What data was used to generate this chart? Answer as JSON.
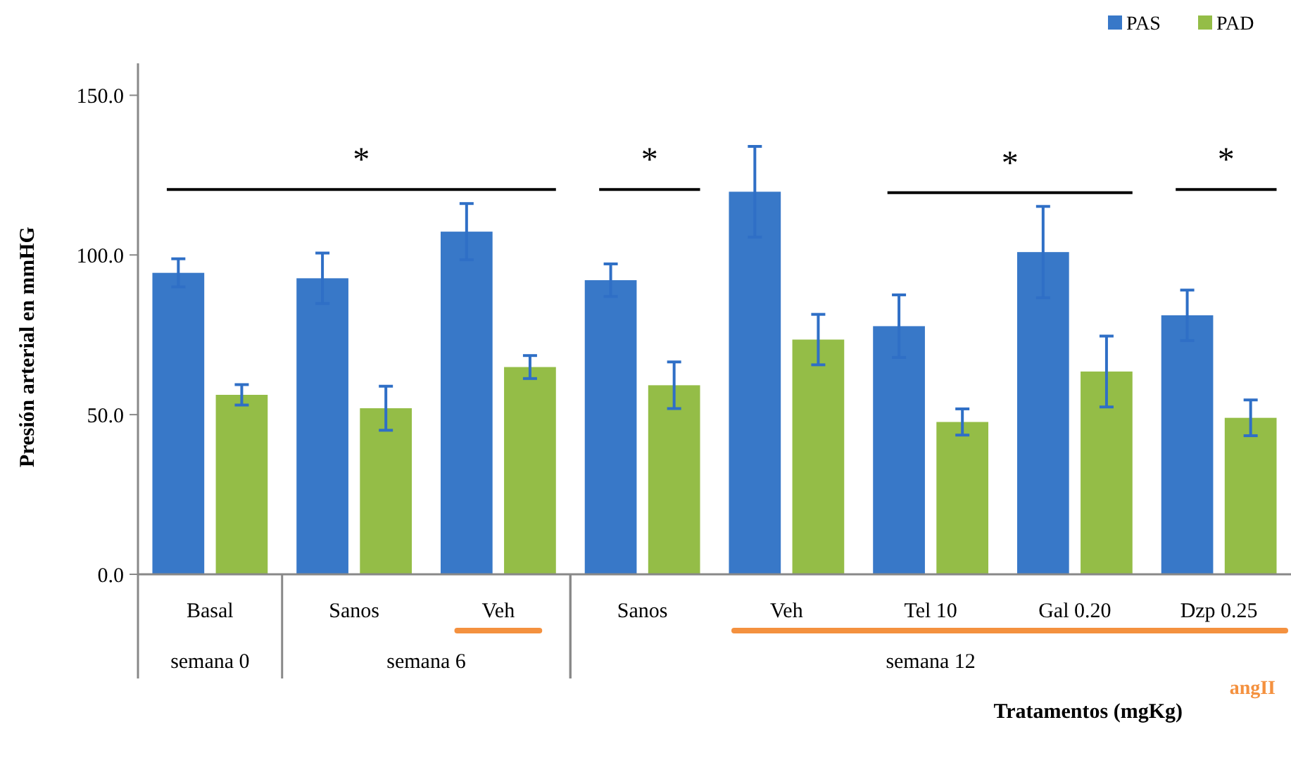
{
  "chart_data": {
    "type": "bar",
    "xlabel": "Tratamentos (mgKg)",
    "ylabel": "Presión arterial en mmHG",
    "categories": [
      "Basal",
      "Sanos",
      "Veh",
      "Sanos",
      "Veh",
      "Tel 10",
      "Gal 0.20",
      "Dzp 0.25"
    ],
    "series": [
      {
        "name": "PAS",
        "color": "#3878c8",
        "values": [
          94.4,
          92.7,
          107.3,
          92.1,
          119.8,
          77.7,
          100.9,
          81.1
        ],
        "errors": [
          4.4,
          7.9,
          8.8,
          5.1,
          14.2,
          9.8,
          14.3,
          7.9
        ]
      },
      {
        "name": "PAD",
        "color": "#94bd47",
        "values": [
          56.2,
          52.0,
          64.9,
          59.2,
          73.5,
          47.7,
          63.5,
          49.0
        ],
        "errors": [
          3.2,
          6.9,
          3.6,
          7.3,
          7.9,
          4.1,
          11.1,
          5.6
        ]
      }
    ],
    "ylim": [
      0,
      160
    ],
    "yticks": [
      {
        "value": 0,
        "label": "0.0"
      },
      {
        "value": 50,
        "label": "50.0"
      },
      {
        "value": 100,
        "label": "100.0"
      },
      {
        "value": 150,
        "label": "150.0"
      }
    ],
    "legend": "top right",
    "grid": false,
    "annotations": [
      "*",
      "*",
      "*",
      "*",
      "semana 0",
      "semana 6",
      "semana 12",
      "angII"
    ]
  }
}
